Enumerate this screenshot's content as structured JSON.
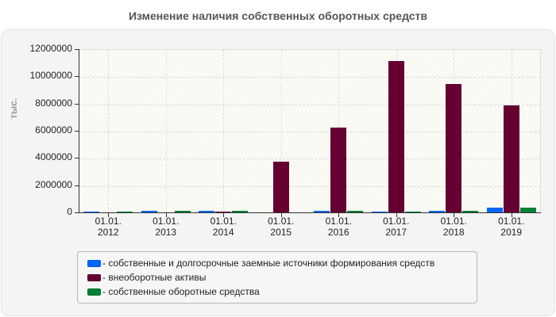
{
  "title": "Изменение наличия собственных оборотных средств",
  "y_axis": {
    "unit_label": "тыс.",
    "ticks": [
      "12000000",
      "10000000",
      "8000000",
      "6000000",
      "4000000",
      "2000000",
      "0"
    ]
  },
  "x_axis": {
    "labels": [
      {
        "line1": "01.01.",
        "line2": "2012"
      },
      {
        "line1": "01.01.",
        "line2": "2013"
      },
      {
        "line1": "01.01.",
        "line2": "2014"
      },
      {
        "line1": "01.01.",
        "line2": "2015"
      },
      {
        "line1": "01.01.",
        "line2": "2016"
      },
      {
        "line1": "01.01.",
        "line2": "2017"
      },
      {
        "line1": "01.01.",
        "line2": "2018"
      },
      {
        "line1": "01.01.",
        "line2": "2019"
      }
    ]
  },
  "legend": {
    "items": [
      {
        "label": "- собственные и долгосрочные заемные источники формирования средств",
        "color": "#0066ff"
      },
      {
        "label": "- внеоборотные активы",
        "color": "#660033"
      },
      {
        "label": "- собственные оборотные средства",
        "color": "#008033"
      }
    ]
  },
  "chart_data": {
    "type": "bar",
    "title": "Изменение наличия собственных оборотных средств",
    "xlabel": "",
    "ylabel": "тыс.",
    "ylim": [
      0,
      12000000
    ],
    "yticks": [
      0,
      2000000,
      4000000,
      6000000,
      8000000,
      10000000,
      12000000
    ],
    "grid": true,
    "legend_position": "bottom",
    "categories": [
      "01.01.2012",
      "01.01.2013",
      "01.01.2014",
      "01.01.2015",
      "01.01.2016",
      "01.01.2017",
      "01.01.2018",
      "01.01.2019"
    ],
    "series": [
      {
        "name": "собственные и долгосрочные заемные источники формирования средств",
        "color": "#0066ff",
        "values": [
          130000,
          190000,
          190000,
          75000,
          190000,
          130000,
          190000,
          425000
        ]
      },
      {
        "name": "внеоборотные активы",
        "color": "#660033",
        "values": [
          75000,
          75000,
          130000,
          3790000,
          6310000,
          11200000,
          9510000,
          7950000
        ]
      },
      {
        "name": "собственные оборотные средства",
        "color": "#008033",
        "values": [
          130000,
          190000,
          190000,
          75000,
          190000,
          130000,
          190000,
          425000
        ]
      }
    ]
  }
}
